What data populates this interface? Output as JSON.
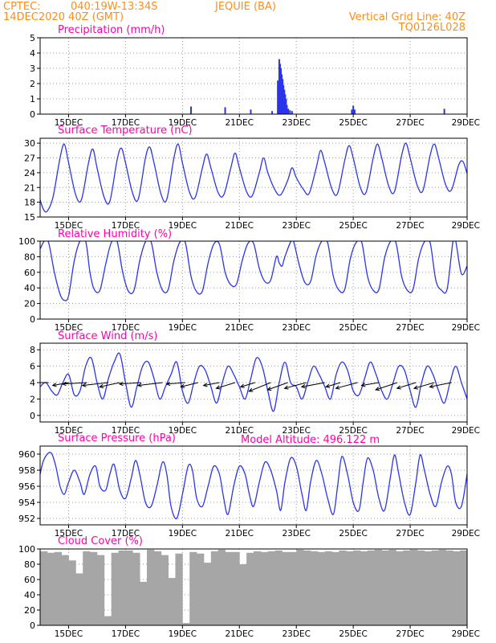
{
  "header": {
    "source": "CPTEC:",
    "location_coords": "040:19W-13:34S",
    "station": "JEQUIE (BA)",
    "run_time": "14DEC2020 40Z (GMT)",
    "grid_note": "Vertical Grid Line: 40Z",
    "model_code": "TQ0126L028"
  },
  "model_altitude": "Model Altitude: 496.122 m",
  "colors": {
    "header": "#ff8c1a",
    "title": "#ff00aa",
    "line": "#2b35e8",
    "cloud": "#a6a6a6"
  },
  "x_axis": {
    "day_start": 14.0,
    "day_end": 29.0,
    "tick_days": [
      15,
      17,
      19,
      21,
      23,
      25,
      27,
      29
    ],
    "tick_labels": [
      "15DEC",
      "17DEC",
      "19DEC",
      "21DEC",
      "23DEC",
      "25DEC",
      "27DEC",
      "29DEC"
    ]
  },
  "chart_data": [
    {
      "type": "bar",
      "title": "Precipitation (mm/h)",
      "ylim": [
        0,
        5
      ],
      "yticks": [
        0,
        1,
        2,
        3,
        4,
        5
      ],
      "ytick_labels": [
        "0",
        "1",
        "2",
        "3",
        "4",
        "5"
      ],
      "x_days": [
        19.3,
        20.5,
        21.4,
        22.15,
        22.35,
        22.4,
        22.43,
        22.46,
        22.49,
        22.52,
        22.55,
        22.58,
        22.61,
        22.64,
        22.67,
        22.72,
        22.78,
        22.85,
        24.95,
        25.0,
        25.05,
        28.2
      ],
      "values": [
        0.5,
        0.45,
        0.3,
        0.2,
        2.2,
        3.6,
        3.3,
        3.0,
        2.6,
        2.3,
        1.9,
        1.6,
        1.3,
        1.0,
        0.6,
        0.35,
        0.25,
        0.2,
        0.3,
        0.55,
        0.3,
        0.35
      ]
    },
    {
      "type": "line",
      "title": "Surface Temperature (nC)",
      "ylim": [
        15,
        31
      ],
      "yticks": [
        15,
        18,
        21,
        24,
        27,
        30
      ],
      "ytick_labels": [
        "15",
        "18",
        "21",
        "24",
        "27",
        "30"
      ],
      "x_days": [
        14.0,
        14.12,
        14.25,
        14.45,
        14.7,
        14.85,
        15.0,
        15.25,
        15.45,
        15.7,
        15.85,
        16.0,
        16.25,
        16.45,
        16.7,
        16.85,
        17.0,
        17.25,
        17.45,
        17.7,
        17.85,
        18.0,
        18.25,
        18.45,
        18.7,
        18.85,
        19.0,
        19.25,
        19.45,
        19.7,
        19.85,
        20.0,
        20.25,
        20.45,
        20.7,
        20.85,
        21.0,
        21.25,
        21.45,
        21.7,
        21.85,
        22.0,
        22.25,
        22.45,
        22.7,
        22.85,
        23.0,
        23.25,
        23.45,
        23.7,
        23.85,
        24.0,
        24.25,
        24.45,
        24.7,
        24.85,
        25.0,
        25.25,
        25.45,
        25.7,
        25.85,
        26.0,
        26.25,
        26.45,
        26.7,
        26.85,
        27.0,
        27.25,
        27.45,
        27.7,
        27.85,
        28.0,
        28.25,
        28.45,
        28.7,
        28.85,
        29.0
      ],
      "values": [
        18.5,
        16.5,
        16.2,
        19,
        27,
        29.8,
        26,
        19.5,
        18.5,
        26,
        28.8,
        25,
        19,
        18.2,
        26.5,
        29,
        26,
        19.8,
        18.7,
        27,
        29.2,
        26,
        19.6,
        18.6,
        27,
        29.8,
        26,
        20,
        19,
        25,
        27.8,
        25,
        20,
        19.5,
        25,
        28,
        25,
        20.2,
        19.3,
        24,
        27,
        24,
        20.5,
        19.5,
        22.5,
        25,
        23,
        20.6,
        19.8,
        25,
        28.5,
        26,
        20.7,
        19.8,
        26.5,
        29.5,
        27,
        21,
        20,
        27,
        29.8,
        27,
        21.2,
        20.2,
        27.5,
        30,
        27,
        21.4,
        20.4,
        27.5,
        29.8,
        27,
        21.5,
        20.5,
        25.5,
        26.3,
        23.8
      ]
    },
    {
      "type": "line",
      "title": "Relative Humidity (%)",
      "ylim": [
        0,
        100
      ],
      "yticks": [
        0,
        20,
        40,
        60,
        80,
        100
      ],
      "ytick_labels": [
        "0",
        "20",
        "40",
        "60",
        "80",
        "100"
      ],
      "x_days": [
        14.0,
        14.15,
        14.3,
        14.5,
        14.7,
        14.85,
        15.0,
        15.2,
        15.4,
        15.6,
        15.75,
        15.9,
        16.1,
        16.3,
        16.5,
        16.7,
        16.9,
        17.1,
        17.3,
        17.5,
        17.7,
        17.9,
        18.1,
        18.3,
        18.5,
        18.7,
        18.9,
        19.1,
        19.3,
        19.5,
        19.7,
        19.9,
        20.1,
        20.3,
        20.5,
        20.7,
        20.9,
        21.1,
        21.3,
        21.5,
        21.7,
        21.9,
        22.1,
        22.3,
        22.4,
        22.5,
        22.6,
        22.8,
        22.9,
        23.1,
        23.3,
        23.5,
        23.7,
        23.9,
        24.1,
        24.3,
        24.5,
        24.7,
        24.9,
        25.1,
        25.3,
        25.5,
        25.7,
        25.9,
        26.1,
        26.3,
        26.5,
        26.7,
        26.9,
        27.1,
        27.3,
        27.5,
        27.7,
        27.9,
        28.1,
        28.3,
        28.5,
        28.6,
        28.8,
        29.0
      ],
      "values": [
        90,
        100,
        98,
        60,
        32,
        24,
        30,
        75,
        100,
        100,
        60,
        38,
        37,
        70,
        98,
        100,
        60,
        36,
        37,
        75,
        99,
        99,
        60,
        37,
        38,
        75,
        98,
        98,
        55,
        35,
        36,
        72,
        96,
        96,
        60,
        44,
        45,
        75,
        97,
        97,
        65,
        48,
        50,
        80,
        72,
        68,
        80,
        99,
        100,
        70,
        47,
        48,
        82,
        100,
        98,
        55,
        37,
        38,
        78,
        98,
        98,
        55,
        37,
        38,
        78,
        99,
        98,
        55,
        37,
        38,
        78,
        99,
        98,
        50,
        37,
        39,
        99,
        100,
        58,
        68
      ]
    },
    {
      "type": "line",
      "title": "Surface Wind (m/s)",
      "ylim": [
        -0.8,
        8.8
      ],
      "yticks": [
        0,
        2,
        4,
        6,
        8
      ],
      "ytick_labels": [
        "0",
        "2",
        "4",
        "6",
        "8"
      ],
      "x_days": [
        14.0,
        14.2,
        14.4,
        14.6,
        14.8,
        15.0,
        15.2,
        15.4,
        15.6,
        15.8,
        16.0,
        16.2,
        16.4,
        16.6,
        16.8,
        17.0,
        17.2,
        17.4,
        17.6,
        17.8,
        18.0,
        18.2,
        18.4,
        18.6,
        18.8,
        19.0,
        19.2,
        19.4,
        19.6,
        19.8,
        20.0,
        20.2,
        20.4,
        20.6,
        20.8,
        21.0,
        21.2,
        21.4,
        21.6,
        21.8,
        22.0,
        22.2,
        22.4,
        22.6,
        22.8,
        23.0,
        23.2,
        23.4,
        23.6,
        23.8,
        24.0,
        24.2,
        24.4,
        24.6,
        24.8,
        25.0,
        25.2,
        25.4,
        25.6,
        25.8,
        26.0,
        26.2,
        26.4,
        26.6,
        26.8,
        27.0,
        27.2,
        27.4,
        27.6,
        27.8,
        28.0,
        28.2,
        28.4,
        28.6,
        28.8,
        29.0
      ],
      "values": [
        3.5,
        4.0,
        3.0,
        2.5,
        4.0,
        5.0,
        2.5,
        3.0,
        6.0,
        7.0,
        4.0,
        2.0,
        4.5,
        6.5,
        7.5,
        4.0,
        1.0,
        3.5,
        6.0,
        6.5,
        4.5,
        2.0,
        3.5,
        5.0,
        6.5,
        3.0,
        1.5,
        4.0,
        6.0,
        5.5,
        3.5,
        1.5,
        4.0,
        6.0,
        5.0,
        3.5,
        2.0,
        4.5,
        7.0,
        6.0,
        3.0,
        0.5,
        4.0,
        6.5,
        4.0,
        3.5,
        2.0,
        4.0,
        6.0,
        5.0,
        3.5,
        2.0,
        5.0,
        6.5,
        5.5,
        3.0,
        2.5,
        4.5,
        6.5,
        5.0,
        3.0,
        2.0,
        4.0,
        6.0,
        5.5,
        3.0,
        1.0,
        4.0,
        6.0,
        5.0,
        3.0,
        1.5,
        4.0,
        6.0,
        4.0,
        2.0
      ],
      "arrow_days": [
        14.3,
        15.0,
        15.65,
        16.4,
        16.8,
        17.55,
        18.3,
        19.1,
        19.55,
        20.3,
        20.85,
        21.55,
        22.1,
        22.7,
        23.35,
        24.0,
        24.55,
        25.15,
        25.9,
        26.55,
        27.2,
        27.85,
        28.45
      ],
      "arrow_u": [
        -1.6,
        -1.1,
        -1.7,
        -1.8,
        -1.4,
        -1.5,
        -1.7,
        -1.3,
        -1.2,
        -1.1,
        -1.3,
        -1.0,
        -1.5,
        -1.4,
        -1.5,
        -1.6,
        -1.0,
        -1.5,
        -1.2,
        -1.5,
        -1.3,
        -1.4,
        -1.5
      ],
      "arrow_v": [
        0.0,
        0.2,
        0.1,
        0.2,
        0.3,
        0.1,
        0.2,
        0.1,
        0.3,
        0.2,
        0.4,
        0.3,
        0.6,
        0.5,
        0.4,
        0.3,
        0.3,
        0.4,
        0.2,
        0.5,
        0.4,
        0.4,
        0.3
      ]
    },
    {
      "type": "line",
      "title": "Surface Pressure (hPa)",
      "ylim": [
        951.2,
        961
      ],
      "yticks": [
        952,
        954,
        956,
        958,
        960
      ],
      "ytick_labels": [
        "952",
        "954",
        "956",
        "958",
        "960"
      ],
      "x_days": [
        14.0,
        14.1,
        14.25,
        14.4,
        14.55,
        14.7,
        14.85,
        15.0,
        15.2,
        15.4,
        15.55,
        15.75,
        15.95,
        16.1,
        16.3,
        16.45,
        16.6,
        16.8,
        17.0,
        17.2,
        17.35,
        17.5,
        17.7,
        17.9,
        18.1,
        18.3,
        18.45,
        18.6,
        18.8,
        19.0,
        19.2,
        19.35,
        19.5,
        19.7,
        19.9,
        20.1,
        20.3,
        20.45,
        20.6,
        20.8,
        21.0,
        21.2,
        21.35,
        21.5,
        21.7,
        21.9,
        22.1,
        22.3,
        22.45,
        22.6,
        22.8,
        23.0,
        23.2,
        23.35,
        23.5,
        23.7,
        23.9,
        24.1,
        24.3,
        24.45,
        24.6,
        24.8,
        25.0,
        25.2,
        25.35,
        25.5,
        25.7,
        25.9,
        26.1,
        26.3,
        26.45,
        26.6,
        26.8,
        27.0,
        27.2,
        27.35,
        27.5,
        27.7,
        27.9,
        28.1,
        28.3,
        28.45,
        28.6,
        28.8,
        29.0
      ],
      "values": [
        957.5,
        959,
        960,
        960.1,
        958.5,
        956,
        955,
        956.5,
        958,
        956.5,
        955,
        957.5,
        958.5,
        956,
        955.5,
        957.5,
        958.7,
        955.5,
        954.5,
        957,
        959.2,
        957.5,
        954,
        953.5,
        956,
        959,
        957.5,
        953.5,
        952,
        955,
        958.5,
        958,
        954.5,
        953.5,
        956,
        958.5,
        957.5,
        954.5,
        952.5,
        956,
        958.5,
        957.5,
        955,
        953.5,
        956.5,
        959,
        958,
        955.5,
        953,
        956.5,
        959.5,
        958.5,
        955,
        953,
        956.5,
        959.2,
        957.5,
        954.5,
        952.5,
        956,
        959.7,
        957.5,
        954,
        953,
        956.5,
        959.5,
        958,
        954.5,
        953,
        957,
        959.9,
        957.5,
        954,
        952.5,
        956.5,
        959.9,
        958,
        955,
        953.5,
        956.5,
        958.5,
        957.5,
        954,
        953.5,
        957.5
      ]
    },
    {
      "type": "bar",
      "title": "Cloud Cover (%)",
      "ylim": [
        0,
        100
      ],
      "yticks": [
        0,
        20,
        40,
        60,
        80,
        100
      ],
      "ytick_labels": [
        "0",
        "20",
        "40",
        "60",
        "80",
        "100"
      ],
      "x_days": [
        14.0,
        14.25,
        14.5,
        14.75,
        15.0,
        15.25,
        15.5,
        15.75,
        16.0,
        16.25,
        16.5,
        16.75,
        17.0,
        17.25,
        17.5,
        17.75,
        18.0,
        18.25,
        18.5,
        18.75,
        19.0,
        19.25,
        19.5,
        19.75,
        20.0,
        20.25,
        20.5,
        20.75,
        21.0,
        21.25,
        21.5,
        21.75,
        22.0,
        22.25,
        22.5,
        22.75,
        23.0,
        23.25,
        23.5,
        23.75,
        24.0,
        24.25,
        24.5,
        24.75,
        25.0,
        25.25,
        25.5,
        25.75,
        26.0,
        26.25,
        26.5,
        26.75,
        27.0,
        27.25,
        27.5,
        27.75,
        28.0,
        28.25,
        28.5,
        28.75
      ],
      "values": [
        97,
        95,
        96,
        92,
        85,
        68,
        97,
        96,
        92,
        12,
        95,
        98,
        98,
        95,
        57,
        99,
        97,
        92,
        62,
        94,
        3,
        96,
        94,
        82,
        97,
        99,
        96,
        96,
        80,
        95,
        97,
        96,
        97,
        98,
        96,
        96,
        99,
        98,
        97,
        96,
        97,
        96,
        98,
        97,
        98,
        97,
        98,
        99,
        98,
        99,
        97,
        98,
        99,
        98,
        97,
        98,
        99,
        98,
        97,
        98
      ]
    }
  ]
}
